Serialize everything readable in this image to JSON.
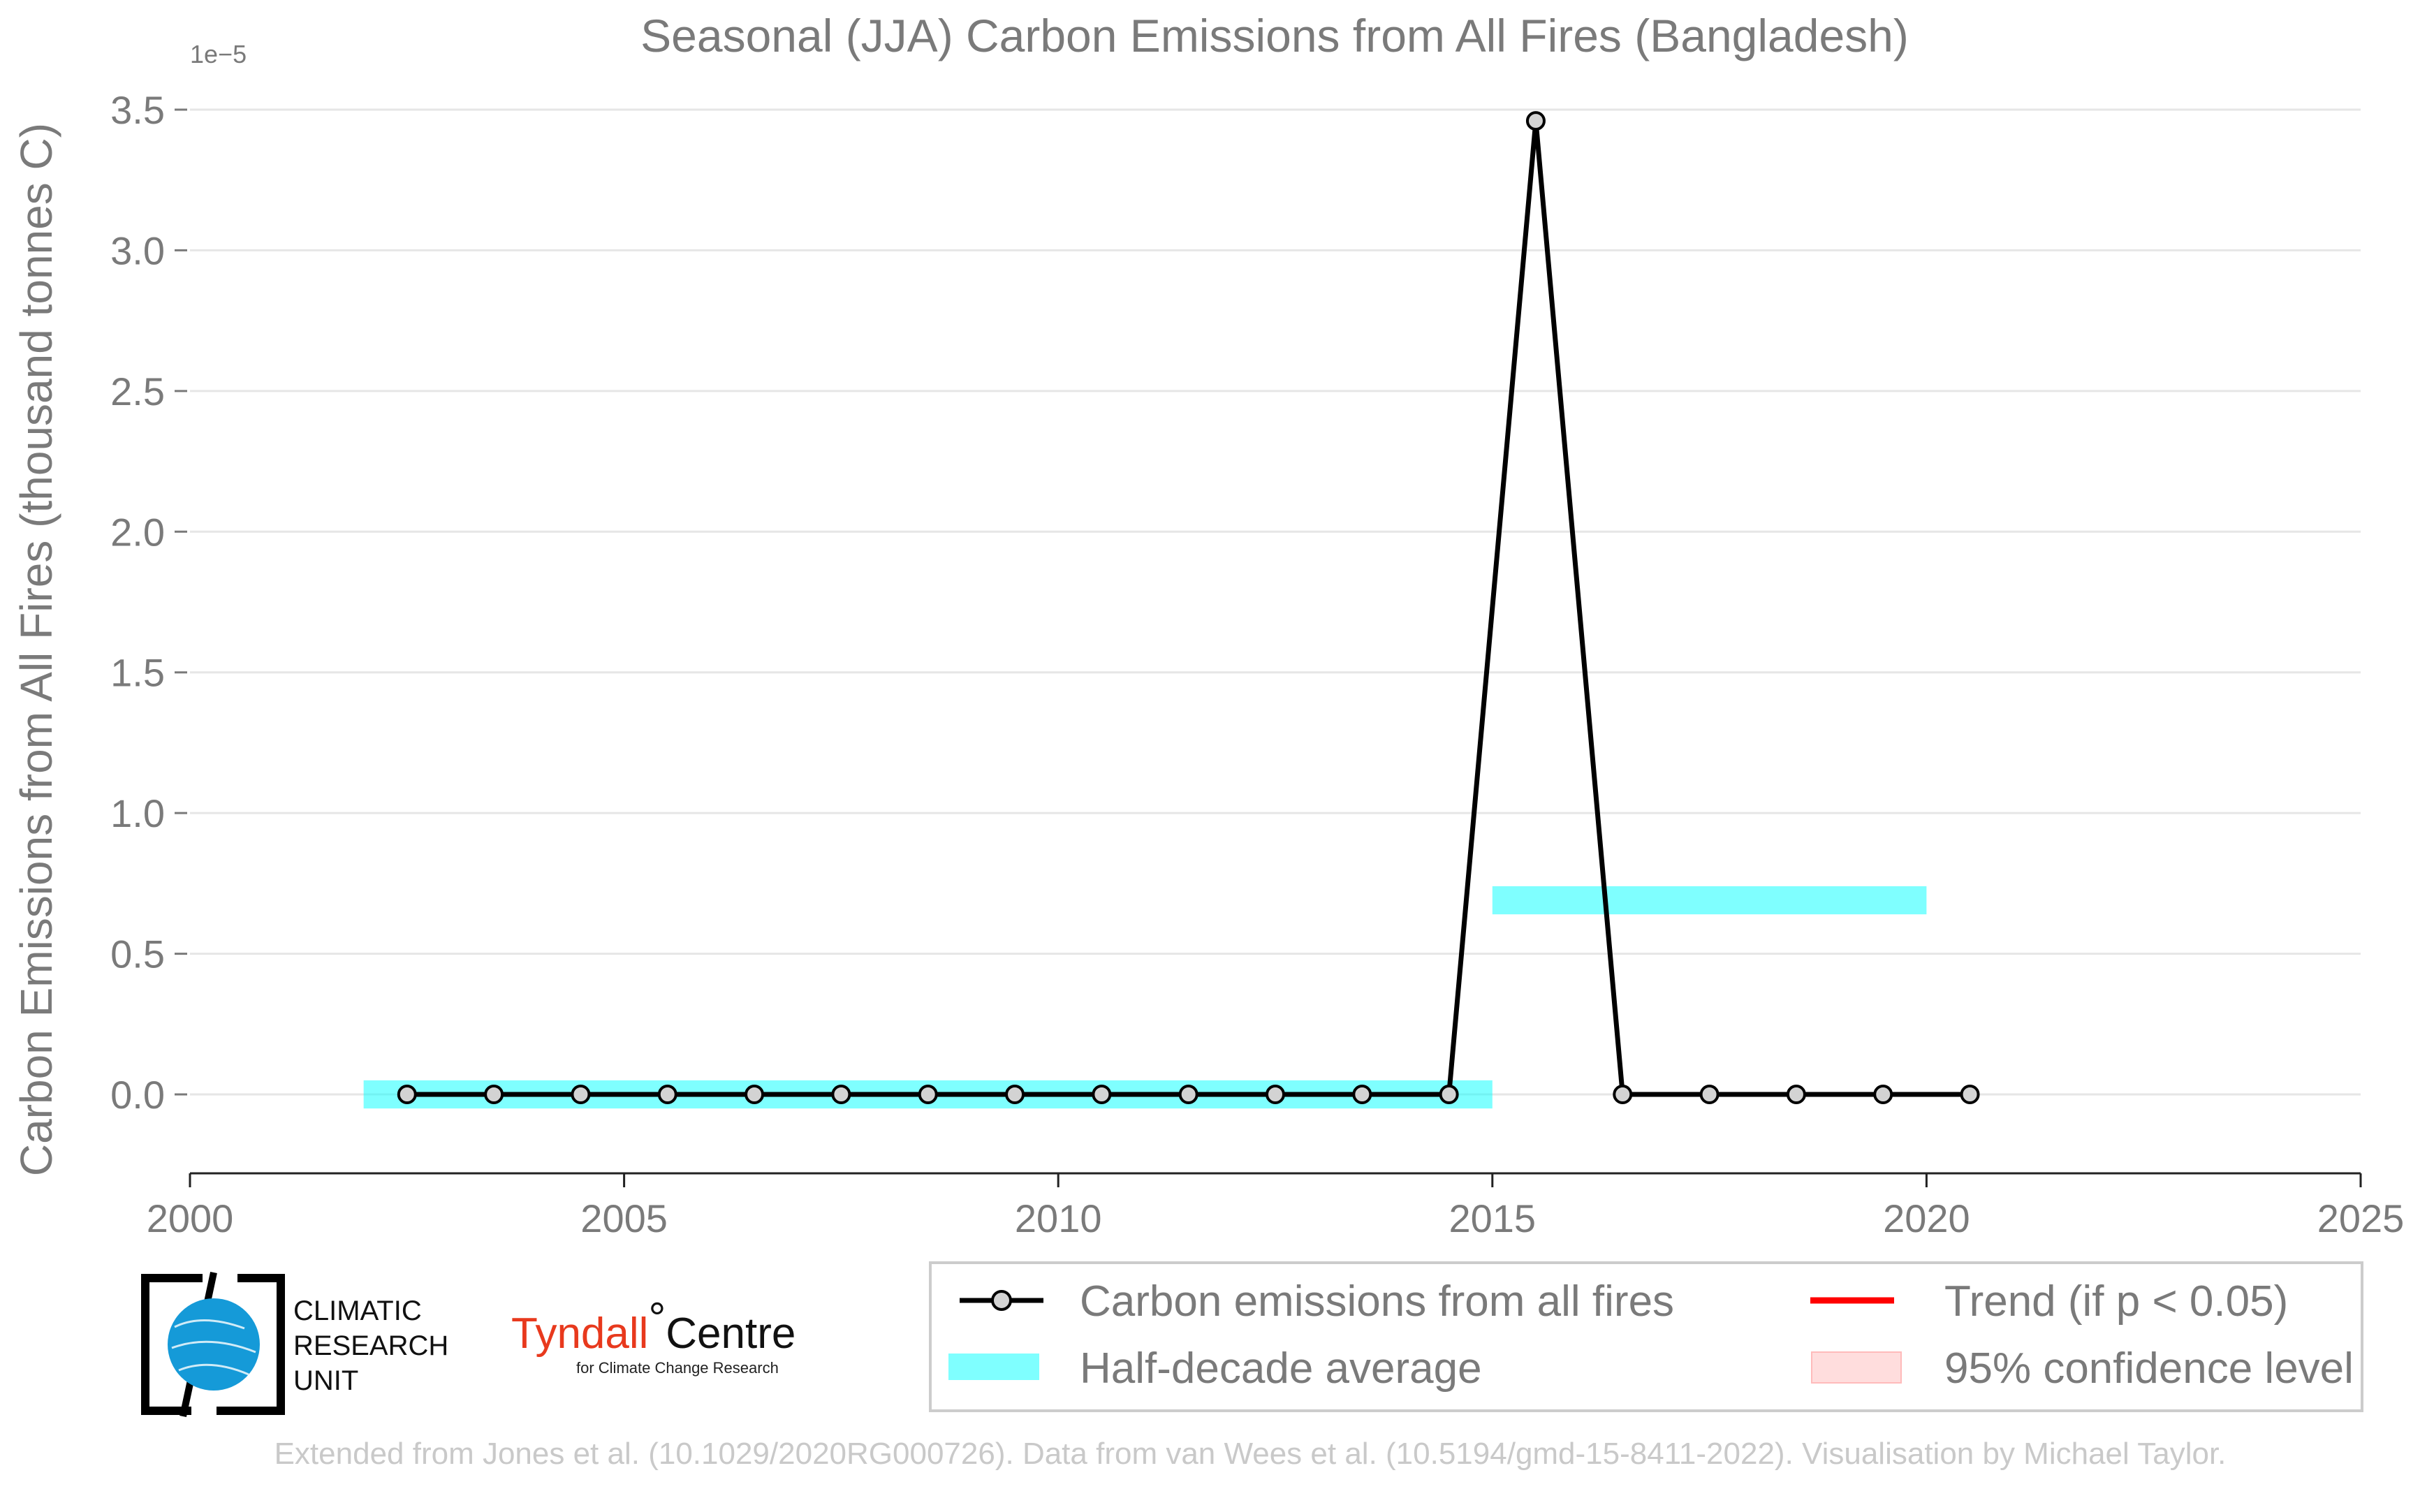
{
  "chart_data": {
    "type": "line",
    "title": "Seasonal (JJA) Carbon Emissions from All Fires (Bangladesh)",
    "ylabel": "Carbon Emissions from All Fires (thousand tonnes C)",
    "xlabel": "",
    "y_exponent_label": "1e−5",
    "y_scale_factor": 1e-05,
    "xlim": [
      2000,
      2025
    ],
    "ylim": [
      -0.28,
      3.5
    ],
    "x_ticks": [
      2000,
      2005,
      2010,
      2015,
      2020,
      2025
    ],
    "x_tick_labels": [
      "2000",
      "2005",
      "2010",
      "2015",
      "2020",
      "2025"
    ],
    "y_ticks": [
      0.0,
      0.5,
      1.0,
      1.5,
      2.0,
      2.5,
      3.0,
      3.5
    ],
    "y_tick_labels": [
      "0.0",
      "0.5",
      "1.0",
      "1.5",
      "2.0",
      "2.5",
      "3.0",
      "3.5"
    ],
    "grid": "horizontal",
    "series": [
      {
        "name": "Carbon emissions from all fires",
        "color": "#000000",
        "marker_fill": "#d3d3d3",
        "x": [
          2002.5,
          2003.5,
          2004.5,
          2005.5,
          2006.5,
          2007.5,
          2008.5,
          2009.5,
          2010.5,
          2011.5,
          2012.5,
          2013.5,
          2014.5,
          2015.5,
          2016.5,
          2017.5,
          2018.5,
          2019.5,
          2020.5
        ],
        "values": [
          0,
          0,
          0,
          0,
          0,
          0,
          0,
          0,
          0,
          0,
          0,
          0,
          0,
          3.46,
          0,
          0,
          0,
          0,
          0
        ]
      }
    ],
    "half_decade_average": {
      "name": "Half-decade average",
      "color": "#00ffff",
      "segments": [
        {
          "x0": 2002,
          "x1": 2015,
          "value": 0.0
        },
        {
          "x0": 2015,
          "x1": 2020,
          "value": 0.69
        }
      ]
    },
    "legend": {
      "placement": "bottom-right",
      "entries": [
        {
          "label": "Carbon emissions from all fires",
          "kind": "line-marker",
          "color": "#000000"
        },
        {
          "label": "Trend (if p < 0.05)",
          "kind": "line",
          "color": "#ff0000"
        },
        {
          "label": "Half-decade average",
          "kind": "band",
          "color": "#00ffff"
        },
        {
          "label": "95% confidence level",
          "kind": "patch",
          "color": "#ffcccc"
        }
      ]
    }
  },
  "logos": {
    "cru_lines": [
      "CLIMATIC",
      "RESEARCH",
      "UNIT"
    ],
    "tyndall_main": "Tyndall",
    "tyndall_degree": "°",
    "tyndall_centre": "Centre",
    "tyndall_sub": "for Climate Change Research"
  },
  "credit": "Extended from Jones et al. (10.1029/2020RG000726). Data from van Wees et al. (10.5194/gmd-15-8411-2022). Visualisation by Michael Taylor."
}
